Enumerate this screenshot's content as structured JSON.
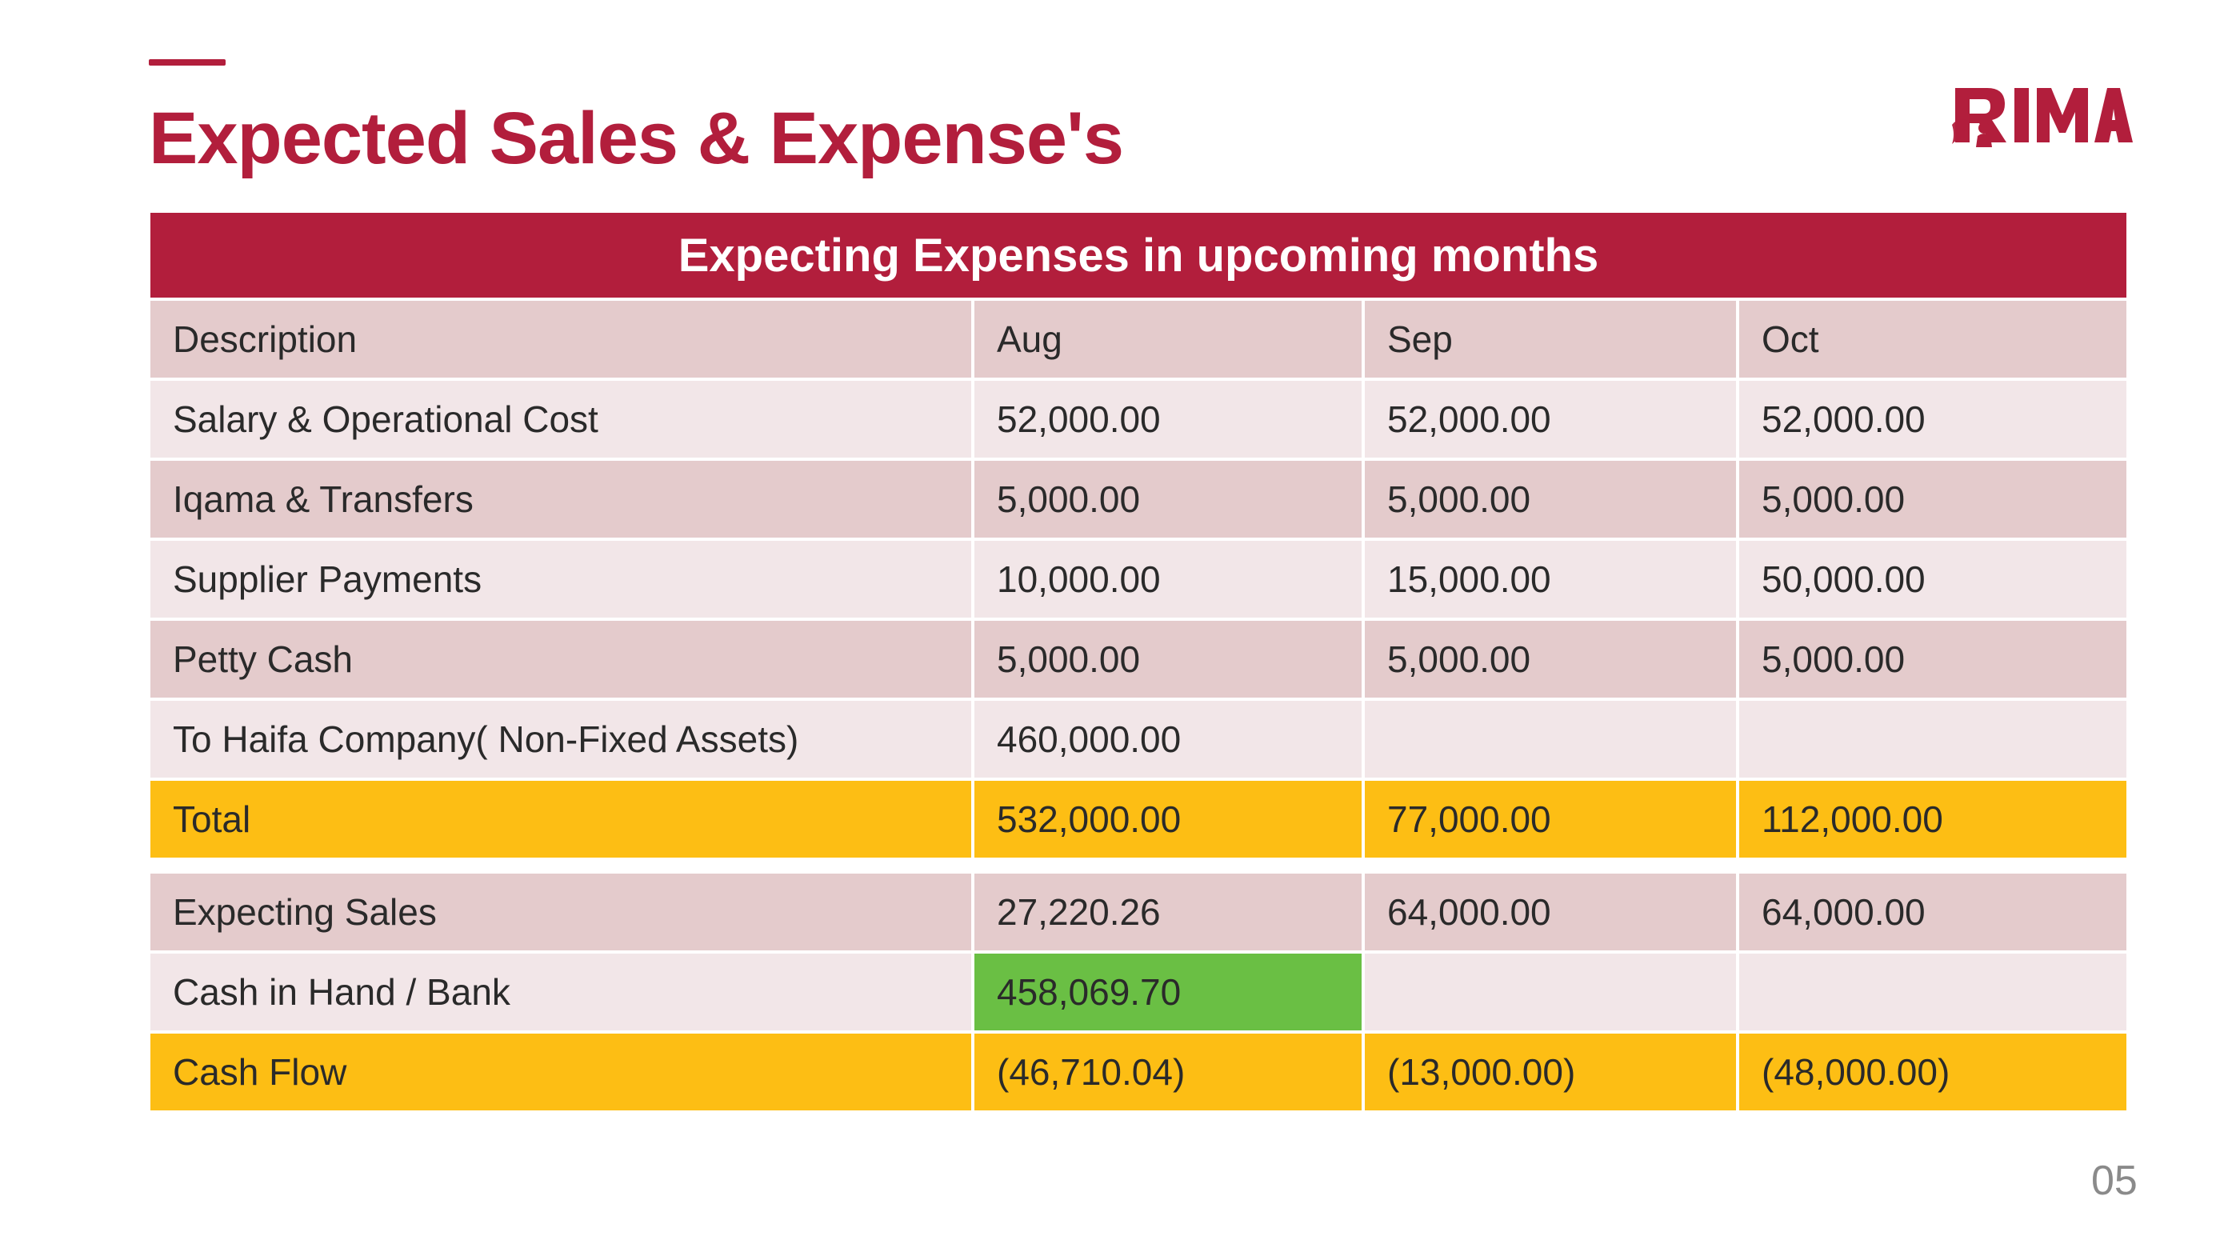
{
  "slide": {
    "title": "Expected Sales & Expense's",
    "page_number": "05"
  },
  "logo": {
    "text": "RIMA",
    "color": "#b21e3c",
    "icon": "woman-silhouette-icon"
  },
  "colors": {
    "brand": "#b21e3c",
    "row_dark": "#e4cbcc",
    "row_light": "#f2e6e8",
    "highlight_total": "#fdbe14",
    "highlight_cash": "#6abf44"
  },
  "table": {
    "banner": "Expecting Expenses in upcoming months",
    "header": [
      "Description",
      "Aug",
      "Sep",
      "Oct"
    ],
    "expense_rows": [
      [
        "Salary & Operational Cost",
        "52,000.00",
        "52,000.00",
        "52,000.00"
      ],
      [
        "Iqama & Transfers",
        "5,000.00",
        "5,000.00",
        "5,000.00"
      ],
      [
        "Supplier Payments",
        "10,000.00",
        "15,000.00",
        "50,000.00"
      ],
      [
        "Petty Cash",
        "5,000.00",
        "5,000.00",
        "5,000.00"
      ],
      [
        "To Haifa Company( Non-Fixed Assets)",
        "460,000.00",
        "",
        ""
      ]
    ],
    "total_row": [
      "Total",
      "532,000.00",
      "77,000.00",
      "112,000.00"
    ],
    "sales_row": [
      "Expecting Sales",
      "27,220.26",
      "64,000.00",
      "64,000.00"
    ],
    "cash_row": [
      "Cash in Hand / Bank",
      "458,069.70",
      "",
      ""
    ],
    "cashflow_row": [
      "Cash Flow",
      "(46,710.04)",
      "(13,000.00)",
      "(48,000.00)"
    ]
  }
}
